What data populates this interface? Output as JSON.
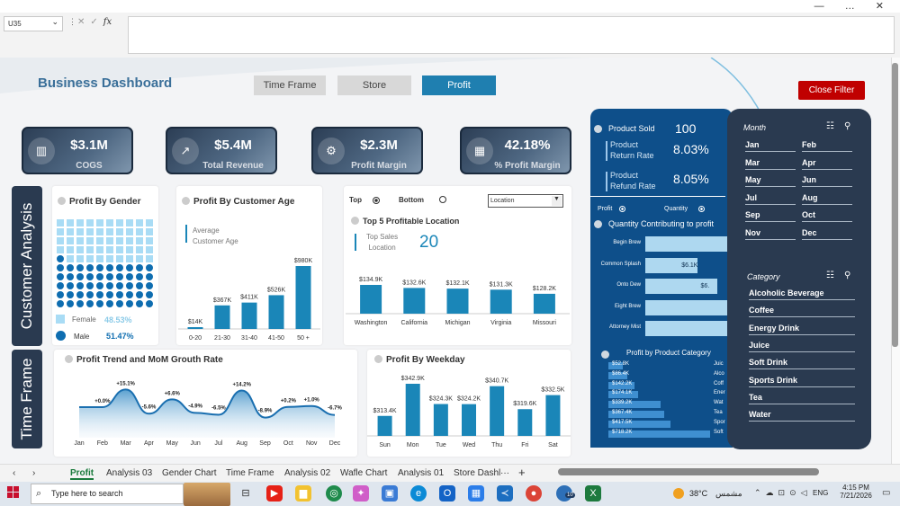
{
  "window": {
    "controls": "— … ✕"
  },
  "formula_bar": {
    "name_box": "U35",
    "fx": "fx",
    "separator": "⋮",
    "cancel": "✕",
    "accept": "✓"
  },
  "dashboard": {
    "title": "Business Dashboard",
    "nav": {
      "time_frame": "Time Frame",
      "store": "Store",
      "profit": "Profit",
      "close_filter": "Close Filter"
    },
    "kpis": [
      {
        "value": "$3.1M",
        "label": "COGS"
      },
      {
        "value": "$5.4M",
        "label": "Total Revenue"
      },
      {
        "value": "$2.3M",
        "label": "Profit Margin"
      },
      {
        "value": "42.18%",
        "label": "% Profit Margin"
      }
    ],
    "section_labels": {
      "customer": "Customer Analysis",
      "time": "Time Frame"
    },
    "gender": {
      "title": "Profit By Gender",
      "female_label": "Female",
      "female_pct": "48.53%",
      "male_label": "Male",
      "male_pct": "51.47%"
    },
    "age": {
      "title": "Profit By Customer Age",
      "note": "Average\nCustomer Age"
    },
    "location": {
      "top": "Top",
      "bottom": "Bottom",
      "dropdown": "Location",
      "title": "Top 5 Profitable Location",
      "kpi_label": "Top Sales\nLocation",
      "kpi_value": "20"
    },
    "trend": {
      "title": "Profit Trend and MoM Grouth Rate"
    },
    "weekday": {
      "title": "Profit By Weekday"
    },
    "product_panel": {
      "sold_label": "Product Sold",
      "sold_value": "100",
      "return_label": "Product\nReturn Rate",
      "return_value": "8.03%",
      "refund_label": "Product\nRefund Rate",
      "refund_value": "8.05%",
      "toggle_profit": "Profit",
      "toggle_qty": "Quantity",
      "qty_title": "Quantity Contributing to profit",
      "cat_title": "Profit by Product Category"
    },
    "month_slicer": {
      "title": "Month",
      "items": [
        "Jan",
        "Feb",
        "Mar",
        "Apr",
        "May",
        "Jun",
        "Jul",
        "Aug",
        "Sep",
        "Oct",
        "Nov",
        "Dec"
      ]
    },
    "category_slicer": {
      "title": "Category",
      "items": [
        "Alcoholic Beverage",
        "Coffee",
        "Energy Drink",
        "Juice",
        "Soft Drink",
        "Sports Drink",
        "Tea",
        "Water"
      ]
    }
  },
  "chart_data": [
    {
      "type": "bar",
      "title": "Profit By Customer Age",
      "categories": [
        "0-20",
        "21-30",
        "31-40",
        "41-50",
        "50 +"
      ],
      "values": [
        14,
        367,
        411,
        526,
        980
      ],
      "data_labels": [
        "$14K",
        "$367K",
        "$411K",
        "$526K",
        "$980K"
      ]
    },
    {
      "type": "bar",
      "title": "Top 5 Profitable Location",
      "categories": [
        "Washington",
        "California",
        "Michigan",
        "Virginia",
        "Missouri"
      ],
      "values": [
        134.9,
        132.6,
        132.1,
        131.3,
        128.2
      ],
      "data_labels": [
        "$134.9K",
        "$132.6K",
        "$132.1K",
        "$131.3K",
        "$128.2K"
      ]
    },
    {
      "type": "area",
      "title": "Profit Trend and MoM Grouth Rate",
      "categories": [
        "Jan",
        "Feb",
        "Mar",
        "Apr",
        "May",
        "Jun",
        "Jul",
        "Aug",
        "Sep",
        "Oct",
        "Nov",
        "Dec"
      ],
      "values": [
        0,
        0.0,
        15.1,
        -5.6,
        6.6,
        -4.9,
        -6.5,
        14.2,
        -8.9,
        0.2,
        1.0,
        -6.7
      ],
      "data_labels": [
        "",
        "+0.0%",
        "+15.1%",
        "-5.6%",
        "+6.6%",
        "-4.9%",
        "-6.5%",
        "+14.2%",
        "-8.9%",
        "+0.2%",
        "+1.0%",
        "-6.7%"
      ]
    },
    {
      "type": "bar",
      "title": "Profit By Weekday",
      "categories": [
        "Sun",
        "Mon",
        "Tue",
        "Wed",
        "Thu",
        "Fri",
        "Sat"
      ],
      "values": [
        313.4,
        342.9,
        324.3,
        324.2,
        340.7,
        319.6,
        332.5
      ],
      "data_labels": [
        "$313.4K",
        "$342.9K",
        "$324.3K",
        "$324.2K",
        "$340.7K",
        "$319.6K",
        "$332.5K"
      ]
    },
    {
      "type": "bar",
      "title": "Quantity Contributing to profit",
      "categories": [
        "Begin Brew",
        "Common Splash",
        "Onto Dew",
        "Eight Brew",
        "Attorney Mist"
      ],
      "values": [
        null,
        6.1,
        null,
        null,
        null
      ],
      "data_labels": [
        "",
        "$6.1K",
        "$6.",
        "",
        ""
      ]
    },
    {
      "type": "bar",
      "title": "Profit by Product Category",
      "categories": [
        "Juic",
        "Alco",
        "Coff",
        "Ener",
        "Wat",
        "Tea",
        "Spor",
        "Soft"
      ],
      "values": [
        52.8,
        86.4,
        142.2,
        174.1,
        339.2,
        367.4,
        417.5,
        718.2
      ],
      "data_labels": [
        "$52.8K",
        "$86.4K",
        "$142.2K",
        "$174.1K",
        "$339.2K",
        "$367.4K",
        "$417.5K",
        "$718.2K"
      ]
    }
  ],
  "sheet_tabs": [
    "Profit",
    "Analysis 03",
    "Gender Chart",
    "Time Frame",
    "Analysis 02",
    "Wafle Chart",
    "Analysis 01",
    "Store Dashl",
    "···",
    "+"
  ],
  "taskbar": {
    "search": "Type here to search",
    "temp": "38°C",
    "weather": "مشمس",
    "lang": "ENG",
    "time": "4:15 PM",
    "date": "7/21/2026",
    "badge": "10"
  }
}
